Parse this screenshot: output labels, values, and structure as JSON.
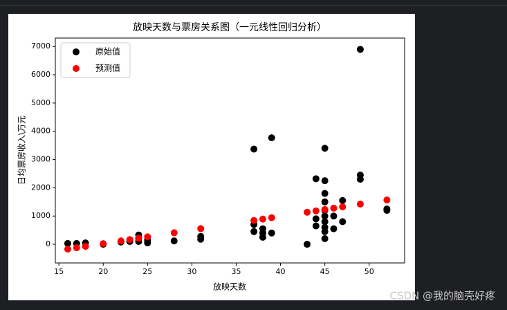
{
  "chart_data": {
    "type": "scatter",
    "title": "放映天数与票房关系图（一元线性回归分析）",
    "x_label": "放映天数",
    "y_label": "日均票房收入\\万元",
    "xlim": [
      14.6,
      54
    ],
    "ylim": [
      -660,
      7300
    ],
    "xticks": [
      15,
      20,
      25,
      30,
      35,
      40,
      45,
      50
    ],
    "yticks": [
      0,
      1000,
      2000,
      3000,
      4000,
      5000,
      6000,
      7000
    ],
    "legend": "upper left",
    "series": [
      {
        "name": "原始值",
        "color": "#000000",
        "x": [
          16,
          17,
          18,
          20,
          22,
          23,
          24,
          24,
          24,
          25,
          25,
          28,
          31,
          31,
          37,
          37,
          37,
          38,
          38,
          38,
          39,
          39,
          43,
          44,
          44,
          44,
          45,
          45,
          45,
          45,
          45,
          45,
          45,
          45,
          45,
          45,
          46,
          46,
          47,
          47,
          49,
          49,
          49,
          52,
          52
        ],
        "values": [
          30,
          30,
          50,
          0,
          80,
          100,
          330,
          200,
          100,
          50,
          150,
          120,
          280,
          180,
          3370,
          700,
          450,
          550,
          400,
          250,
          3770,
          400,
          0,
          2320,
          900,
          650,
          3400,
          2250,
          1800,
          1500,
          1200,
          1000,
          800,
          600,
          450,
          200,
          1000,
          550,
          1550,
          800,
          6900,
          2450,
          2300,
          1250,
          1200
        ]
      },
      {
        "name": "预测值",
        "color": "#ff0000",
        "x": [
          16,
          17,
          18,
          20,
          22,
          23,
          24,
          25,
          28,
          31,
          37,
          38,
          39,
          43,
          44,
          45,
          46,
          47,
          49,
          52
        ],
        "values": [
          -170,
          -122,
          -74,
          23,
          120,
          168,
          216,
          265,
          409,
          554,
          844,
          892,
          941,
          1134,
          1182,
          1231,
          1279,
          1327,
          1424,
          1569
        ]
      }
    ]
  },
  "watermark": "CSDN @我的脑壳好疼"
}
